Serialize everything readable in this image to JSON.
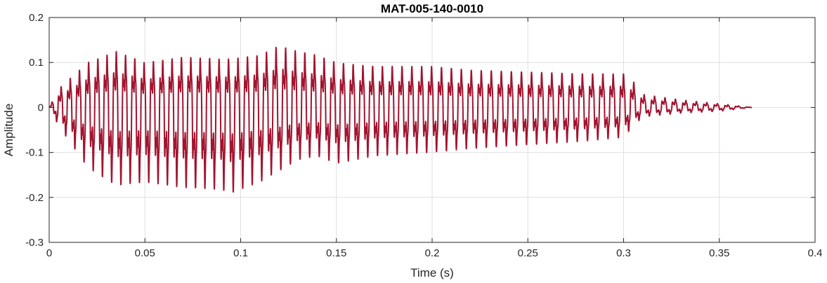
{
  "chart_data": {
    "type": "line",
    "title": "MAT-005-140-0010",
    "xlabel": "Time (s)",
    "ylabel": "Amplitude",
    "xlim": [
      0,
      0.4
    ],
    "ylim": [
      -0.3,
      0.2
    ],
    "xticks": [
      0,
      0.05,
      0.1,
      0.15,
      0.2,
      0.25,
      0.3,
      0.35,
      0.4
    ],
    "xtick_labels": [
      "0",
      "0.05",
      "0.1",
      "0.15",
      "0.2",
      "0.25",
      "0.3",
      "0.35",
      "0.4"
    ],
    "yticks": [
      -0.3,
      -0.2,
      -0.1,
      0,
      0.1,
      0.2
    ],
    "ytick_labels": [
      "-0.3",
      "-0.2",
      "-0.1",
      "0",
      "0.1",
      "0.2"
    ],
    "grid": true,
    "line_color": "#A2142F",
    "series": [
      {
        "duration": 0.367,
        "envelope_time": [
          0,
          0.005,
          0.02,
          0.035,
          0.05,
          0.07,
          0.09,
          0.095,
          0.11,
          0.12,
          0.13,
          0.14,
          0.15,
          0.17,
          0.2,
          0.22,
          0.25,
          0.28,
          0.3,
          0.305,
          0.31,
          0.33,
          0.35,
          0.367
        ],
        "envelope_max": [
          0.0,
          0.05,
          0.12,
          0.15,
          0.12,
          0.135,
          0.13,
          0.13,
          0.14,
          0.165,
          0.15,
          0.14,
          0.12,
          0.11,
          0.11,
          0.1,
          0.095,
          0.09,
          0.09,
          0.07,
          0.035,
          0.02,
          0.01,
          0.0
        ],
        "envelope_min": [
          0.0,
          -0.05,
          -0.16,
          -0.21,
          -0.2,
          -0.215,
          -0.22,
          -0.23,
          -0.2,
          -0.17,
          -0.14,
          -0.13,
          -0.15,
          -0.13,
          -0.12,
          -0.11,
          -0.1,
          -0.09,
          -0.08,
          -0.05,
          -0.025,
          -0.015,
          -0.01,
          0.0
        ]
      }
    ]
  }
}
